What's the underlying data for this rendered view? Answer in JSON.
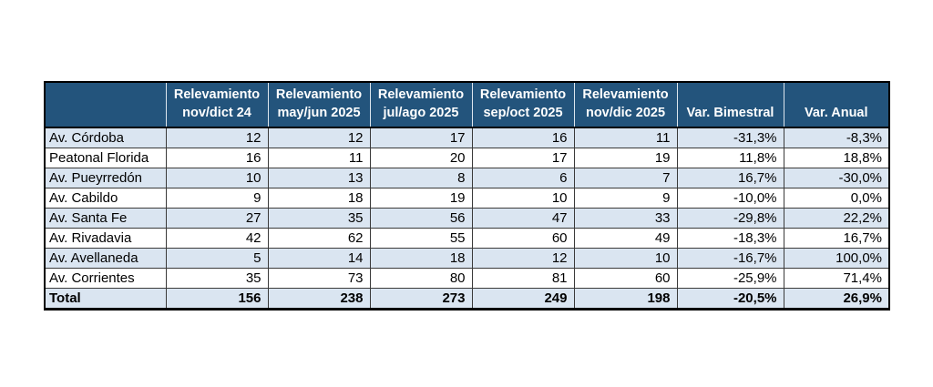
{
  "page": {
    "background": "#ffffff"
  },
  "table": {
    "colors": {
      "header_bg": "#23547C",
      "header_text": "#ffffff",
      "row_alt_bg": "#DAE5F1",
      "row_bg": "#ffffff",
      "cell_text": "#000000",
      "border": "#000000"
    },
    "columns": [
      {
        "id": "street",
        "line1": "",
        "line2": ""
      },
      {
        "id": "nov-dict-24",
        "line1": "Relevamiento",
        "line2": "nov/dict 24"
      },
      {
        "id": "may-jun-2025",
        "line1": "Relevamiento",
        "line2": "may/jun 2025"
      },
      {
        "id": "jul-ago-2025",
        "line1": "Relevamiento",
        "line2": "jul/ago 2025"
      },
      {
        "id": "sep-oct-2025",
        "line1": "Relevamiento",
        "line2": "sep/oct 2025"
      },
      {
        "id": "nov-dic-2025",
        "line1": "Relevamiento",
        "line2": "nov/dic 2025"
      },
      {
        "id": "var-bimestral",
        "line1": "",
        "line2": "Var. Bimestral"
      },
      {
        "id": "var-anual",
        "line1": "",
        "line2": "Var. Anual"
      }
    ],
    "rows": [
      {
        "label": "Av. Córdoba",
        "values": [
          "12",
          "12",
          "17",
          "16",
          "11",
          "-31,3%",
          "-8,3%"
        ]
      },
      {
        "label": "Peatonal Florida",
        "values": [
          "16",
          "11",
          "20",
          "17",
          "19",
          "11,8%",
          "18,8%"
        ]
      },
      {
        "label": "Av. Pueyrredón",
        "values": [
          "10",
          "13",
          "8",
          "6",
          "7",
          "16,7%",
          "-30,0%"
        ]
      },
      {
        "label": "Av. Cabildo",
        "values": [
          "9",
          "18",
          "19",
          "10",
          "9",
          "-10,0%",
          "0,0%"
        ]
      },
      {
        "label": "Av. Santa Fe",
        "values": [
          "27",
          "35",
          "56",
          "47",
          "33",
          "-29,8%",
          "22,2%"
        ]
      },
      {
        "label": "Av. Rivadavia",
        "values": [
          "42",
          "62",
          "55",
          "60",
          "49",
          "-18,3%",
          "16,7%"
        ]
      },
      {
        "label": "Av. Avellaneda",
        "values": [
          "5",
          "14",
          "18",
          "12",
          "10",
          "-16,7%",
          "100,0%"
        ]
      },
      {
        "label": "Av. Corrientes",
        "values": [
          "35",
          "73",
          "80",
          "81",
          "60",
          "-25,9%",
          "71,4%"
        ]
      }
    ],
    "total_row": {
      "label": "Total",
      "values": [
        "156",
        "238",
        "273",
        "249",
        "198",
        "-20,5%",
        "26,9%"
      ]
    }
  },
  "chart_data": {
    "type": "table",
    "title": "",
    "column_headers": [
      "",
      "Relevamiento nov/dict 24",
      "Relevamiento may/jun 2025",
      "Relevamiento jul/ago 2025",
      "Relevamiento sep/oct 2025",
      "Relevamiento nov/dic 2025",
      "Var. Bimestral",
      "Var. Anual"
    ],
    "categories": [
      "Av. Córdoba",
      "Peatonal Florida",
      "Av. Pueyrredón",
      "Av. Cabildo",
      "Av. Santa Fe",
      "Av. Rivadavia",
      "Av. Avellaneda",
      "Av. Corrientes",
      "Total"
    ],
    "series": [
      {
        "name": "Relevamiento nov/dict 24",
        "values": [
          12,
          16,
          10,
          9,
          27,
          42,
          5,
          35,
          156
        ]
      },
      {
        "name": "Relevamiento may/jun 2025",
        "values": [
          12,
          11,
          13,
          18,
          35,
          62,
          14,
          73,
          238
        ]
      },
      {
        "name": "Relevamiento jul/ago 2025",
        "values": [
          17,
          20,
          8,
          19,
          56,
          55,
          18,
          80,
          273
        ]
      },
      {
        "name": "Relevamiento sep/oct 2025",
        "values": [
          16,
          17,
          6,
          10,
          47,
          60,
          12,
          81,
          249
        ]
      },
      {
        "name": "Relevamiento nov/dic 2025",
        "values": [
          11,
          19,
          7,
          9,
          33,
          49,
          10,
          60,
          198
        ]
      },
      {
        "name": "Var. Bimestral",
        "values": [
          "-31,3%",
          "11,8%",
          "16,7%",
          "-10,0%",
          "-29,8%",
          "-18,3%",
          "-16,7%",
          "-25,9%",
          "-20,5%"
        ]
      },
      {
        "name": "Var. Anual",
        "values": [
          "-8,3%",
          "18,8%",
          "-30,0%",
          "0,0%",
          "22,2%",
          "16,7%",
          "100,0%",
          "71,4%",
          "26,9%"
        ]
      }
    ]
  }
}
